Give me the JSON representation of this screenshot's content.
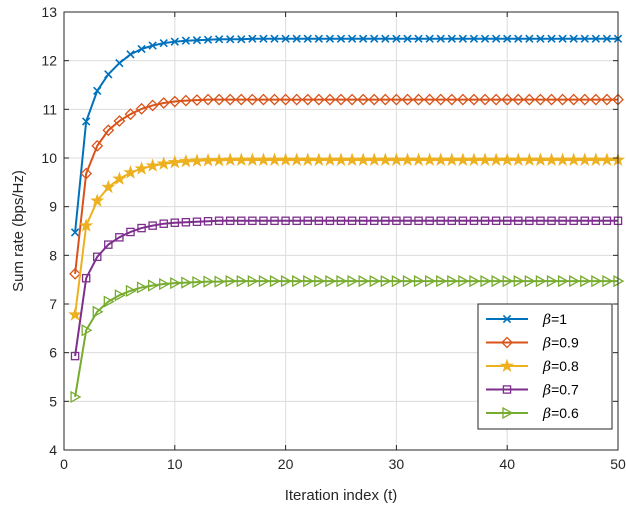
{
  "chart_data": {
    "type": "line",
    "title": "",
    "xlabel": "Iteration index (t)",
    "ylabel": "Sum rate (bps/Hz)",
    "xlim": [
      0,
      50
    ],
    "ylim": [
      4,
      13
    ],
    "xticks": [
      0,
      10,
      20,
      30,
      40,
      50
    ],
    "yticks": [
      4,
      5,
      6,
      7,
      8,
      9,
      10,
      11,
      12,
      13
    ],
    "grid": true,
    "legend_position": "bottom-right",
    "x": [
      1,
      2,
      3,
      4,
      5,
      6,
      7,
      8,
      9,
      10,
      11,
      12,
      13,
      14,
      15,
      16,
      17,
      18,
      19,
      20,
      21,
      22,
      23,
      24,
      25,
      26,
      27,
      28,
      29,
      30,
      31,
      32,
      33,
      34,
      35,
      36,
      37,
      38,
      39,
      40,
      41,
      42,
      43,
      44,
      45,
      46,
      47,
      48,
      49,
      50
    ],
    "series": [
      {
        "name": "β=1",
        "legend_symbol": "β",
        "legend_value": "=1",
        "color": "#0072BD",
        "marker": "x",
        "values": [
          8.47,
          10.75,
          11.38,
          11.72,
          11.95,
          12.13,
          12.24,
          12.31,
          12.36,
          12.39,
          12.41,
          12.42,
          12.43,
          12.44,
          12.44,
          12.44,
          12.45,
          12.45,
          12.45,
          12.45,
          12.45,
          12.45,
          12.45,
          12.45,
          12.45,
          12.45,
          12.45,
          12.45,
          12.45,
          12.45,
          12.45,
          12.45,
          12.45,
          12.45,
          12.45,
          12.45,
          12.45,
          12.45,
          12.45,
          12.45,
          12.45,
          12.45,
          12.45,
          12.45,
          12.45,
          12.45,
          12.45,
          12.45,
          12.45,
          12.45
        ]
      },
      {
        "name": "β=0.9",
        "legend_symbol": "β",
        "legend_value": "=0.9",
        "color": "#D95319",
        "marker": "diamond",
        "values": [
          7.62,
          9.68,
          10.25,
          10.57,
          10.76,
          10.9,
          11.01,
          11.08,
          11.13,
          11.16,
          11.18,
          11.19,
          11.2,
          11.2,
          11.2,
          11.2,
          11.2,
          11.2,
          11.2,
          11.2,
          11.2,
          11.2,
          11.2,
          11.2,
          11.2,
          11.2,
          11.2,
          11.2,
          11.2,
          11.2,
          11.2,
          11.2,
          11.2,
          11.2,
          11.2,
          11.2,
          11.2,
          11.2,
          11.2,
          11.2,
          11.2,
          11.2,
          11.2,
          11.2,
          11.2,
          11.2,
          11.2,
          11.2,
          11.2,
          11.2
        ]
      },
      {
        "name": "β=0.8",
        "legend_symbol": "β",
        "legend_value": "=0.8",
        "color": "#EDB120",
        "marker": "star",
        "values": [
          6.78,
          8.61,
          9.12,
          9.4,
          9.57,
          9.7,
          9.78,
          9.84,
          9.88,
          9.91,
          9.93,
          9.94,
          9.95,
          9.95,
          9.96,
          9.96,
          9.96,
          9.96,
          9.96,
          9.96,
          9.96,
          9.96,
          9.96,
          9.96,
          9.96,
          9.96,
          9.96,
          9.96,
          9.96,
          9.96,
          9.96,
          9.96,
          9.96,
          9.96,
          9.96,
          9.96,
          9.96,
          9.96,
          9.96,
          9.96,
          9.96,
          9.96,
          9.96,
          9.96,
          9.96,
          9.96,
          9.96,
          9.96,
          9.96,
          9.96
        ]
      },
      {
        "name": "β=0.7",
        "legend_symbol": "β",
        "legend_value": "=0.7",
        "color": "#7E2F8E",
        "marker": "square",
        "values": [
          5.93,
          7.53,
          7.97,
          8.22,
          8.37,
          8.48,
          8.56,
          8.61,
          8.65,
          8.67,
          8.68,
          8.69,
          8.7,
          8.71,
          8.71,
          8.71,
          8.71,
          8.71,
          8.71,
          8.71,
          8.71,
          8.71,
          8.71,
          8.71,
          8.71,
          8.71,
          8.71,
          8.71,
          8.71,
          8.71,
          8.71,
          8.71,
          8.71,
          8.71,
          8.71,
          8.71,
          8.71,
          8.71,
          8.71,
          8.71,
          8.71,
          8.71,
          8.71,
          8.71,
          8.71,
          8.71,
          8.71,
          8.71,
          8.71,
          8.71
        ]
      },
      {
        "name": "β=0.6",
        "legend_symbol": "β",
        "legend_value": "=0.6",
        "color": "#77AC30",
        "marker": "triangle-right",
        "values": [
          5.09,
          6.46,
          6.84,
          7.05,
          7.18,
          7.27,
          7.34,
          7.38,
          7.41,
          7.43,
          7.44,
          7.45,
          7.46,
          7.46,
          7.47,
          7.47,
          7.47,
          7.47,
          7.47,
          7.47,
          7.47,
          7.47,
          7.47,
          7.47,
          7.47,
          7.47,
          7.47,
          7.47,
          7.47,
          7.47,
          7.47,
          7.47,
          7.47,
          7.47,
          7.47,
          7.47,
          7.47,
          7.47,
          7.47,
          7.47,
          7.47,
          7.47,
          7.47,
          7.47,
          7.47,
          7.47,
          7.47,
          7.47,
          7.47,
          7.47
        ]
      }
    ]
  }
}
